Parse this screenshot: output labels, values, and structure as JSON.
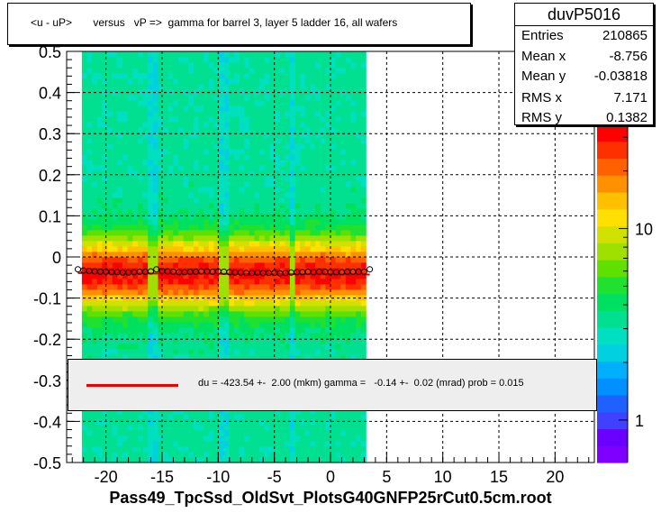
{
  "title": "<u - uP>       versus   vP =>  gamma for barrel 3, layer 5 ladder 16, all wafers",
  "stats": {
    "name": "duvP5016",
    "rows": [
      {
        "key": "Entries",
        "value": "210865"
      },
      {
        "key": "Mean x",
        "value": "-8.756"
      },
      {
        "key": "Mean y",
        "value": "-0.03818"
      },
      {
        "key": "RMS x",
        "value": "7.171"
      },
      {
        "key": "RMS y",
        "value": "0.1382"
      }
    ]
  },
  "fit_text": "du = -423.54 +-  2.00 (mkm) gamma =   -0.14 +-  0.02 (mrad) prob = 0.015",
  "xlabel": "Pass49_TpcSsd_OldSvt_PlotsG40GNFP25rCut0.5cm.root",
  "colors": {
    "fit_line": "#e00000",
    "markers": "#000000"
  },
  "chart_data": {
    "type": "heatmap",
    "xlim": [
      -23.5,
      23.5
    ],
    "ylim": [
      -0.5,
      0.5
    ],
    "x_ticks": [
      -20,
      -15,
      -10,
      -5,
      0,
      5,
      10,
      15,
      20
    ],
    "y_ticks": [
      -0.5,
      -0.4,
      -0.3,
      -0.2,
      -0.1,
      0,
      0.1,
      0.2,
      0.3,
      0.4,
      0.5
    ],
    "y_tick_labels": [
      "-0.5",
      "-0.4",
      "-0.3",
      "-0.2",
      "-0.1",
      "0",
      "0.1",
      "0.2",
      "0.3",
      "0.4",
      "0.5"
    ],
    "color_scale": "log",
    "z_ticks": [
      {
        "label": "1",
        "value": 1
      },
      {
        "label": "10",
        "value": 10
      }
    ],
    "grid": true,
    "data_x_range": [
      -22.3,
      3.3
    ],
    "gap_x": [
      -15.7,
      -9.4,
      -3.4
    ],
    "profile": {
      "x": [
        -22.5,
        -22,
        -21.5,
        -21,
        -20.5,
        -20,
        -19.5,
        -19,
        -18.5,
        -18,
        -17.5,
        -17,
        -16.5,
        -16,
        -15.5,
        -15,
        -14.5,
        -14,
        -13.5,
        -13,
        -12.5,
        -12,
        -11.5,
        -11,
        -10.5,
        -10,
        -9.5,
        -9,
        -8.5,
        -8,
        -7.5,
        -7,
        -6.5,
        -6,
        -5.5,
        -5,
        -4.5,
        -4,
        -3.5,
        -3,
        -2.5,
        -2,
        -1.5,
        -1,
        -0.5,
        0,
        0.5,
        1,
        1.5,
        2,
        2.5,
        3,
        3.5
      ],
      "y": [
        -0.03,
        -0.033,
        -0.034,
        -0.035,
        -0.036,
        -0.036,
        -0.037,
        -0.037,
        -0.038,
        -0.038,
        -0.037,
        -0.036,
        -0.036,
        -0.035,
        -0.03,
        -0.034,
        -0.035,
        -0.036,
        -0.037,
        -0.037,
        -0.036,
        -0.036,
        -0.035,
        -0.035,
        -0.036,
        -0.035,
        -0.036,
        -0.037,
        -0.038,
        -0.038,
        -0.039,
        -0.039,
        -0.038,
        -0.039,
        -0.039,
        -0.039,
        -0.04,
        -0.039,
        -0.038,
        -0.037,
        -0.037,
        -0.036,
        -0.037,
        -0.036,
        -0.036,
        -0.037,
        -0.037,
        -0.037,
        -0.036,
        -0.036,
        -0.036,
        -0.036,
        -0.03
      ]
    },
    "fit": {
      "du_mkm": -423.54,
      "gamma_mrad": -0.14
    }
  }
}
